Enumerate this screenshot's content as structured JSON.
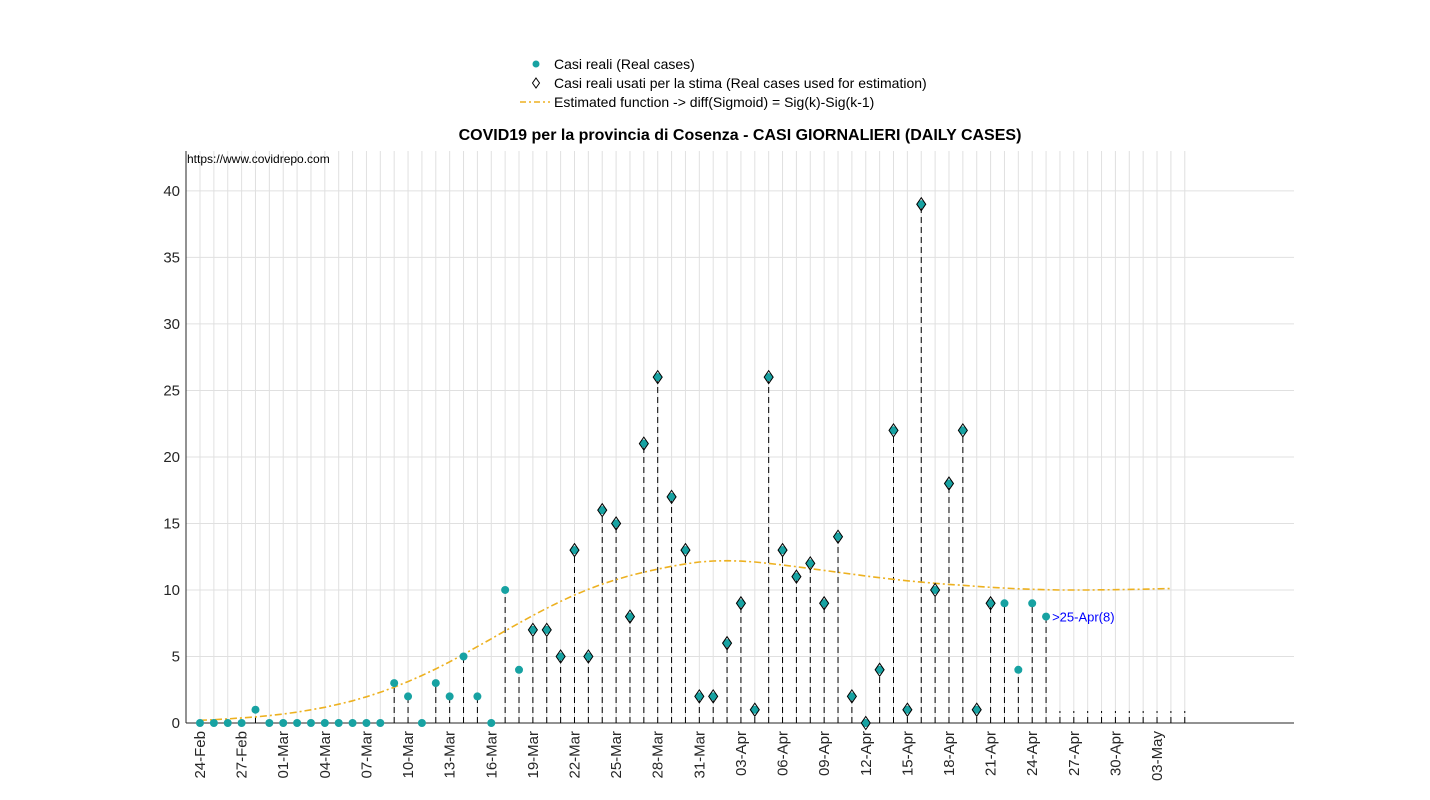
{
  "chart_data": {
    "type": "scatter",
    "title": "COVID19 per la provincia di Cosenza - CASI GIORNALIERI (DAILY CASES)",
    "source_text": "https://www.covidrepo.com",
    "xlabel": "",
    "ylabel": "",
    "ylim": [
      0,
      43
    ],
    "yticks": [
      0,
      5,
      10,
      15,
      20,
      25,
      30,
      35,
      40
    ],
    "grid": true,
    "legend_position": "top-center-outside",
    "x_dates": [
      "24-Feb",
      "25-Feb",
      "26-Feb",
      "27-Feb",
      "28-Feb",
      "29-Feb",
      "01-Mar",
      "02-Mar",
      "03-Mar",
      "04-Mar",
      "05-Mar",
      "06-Mar",
      "07-Mar",
      "08-Mar",
      "09-Mar",
      "10-Mar",
      "11-Mar",
      "12-Mar",
      "13-Mar",
      "14-Mar",
      "15-Mar",
      "16-Mar",
      "17-Mar",
      "18-Mar",
      "19-Mar",
      "20-Mar",
      "21-Mar",
      "22-Mar",
      "23-Mar",
      "24-Mar",
      "25-Mar",
      "26-Mar",
      "27-Mar",
      "28-Mar",
      "29-Mar",
      "30-Mar",
      "31-Mar",
      "01-Apr",
      "02-Apr",
      "03-Apr",
      "04-Apr",
      "05-Apr",
      "06-Apr",
      "07-Apr",
      "08-Apr",
      "09-Apr",
      "10-Apr",
      "11-Apr",
      "12-Apr",
      "13-Apr",
      "14-Apr",
      "15-Apr",
      "16-Apr",
      "17-Apr",
      "18-Apr",
      "19-Apr",
      "20-Apr",
      "21-Apr",
      "22-Apr",
      "23-Apr",
      "24-Apr",
      "25-Apr",
      "26-Apr",
      "27-Apr",
      "28-Apr",
      "29-Apr",
      "30-Apr",
      "01-May",
      "02-May",
      "03-May",
      "04-May",
      "05-May"
    ],
    "x_tick_labels": [
      "24-Feb",
      "27-Feb",
      "01-Mar",
      "04-Mar",
      "07-Mar",
      "10-Mar",
      "13-Mar",
      "16-Mar",
      "19-Mar",
      "22-Mar",
      "25-Mar",
      "28-Mar",
      "31-Mar",
      "03-Apr",
      "06-Apr",
      "09-Apr",
      "12-Apr",
      "15-Apr",
      "18-Apr",
      "21-Apr",
      "24-Apr",
      "27-Apr",
      "30-Apr",
      "03-May"
    ],
    "series": [
      {
        "name": "Casi reali (Real cases)",
        "marker": "circle",
        "color": "#17a2a2",
        "values": [
          0,
          0,
          0,
          0,
          1,
          0,
          0,
          0,
          0,
          0,
          0,
          0,
          0,
          0,
          3,
          2,
          0,
          3,
          2,
          5,
          2,
          0,
          10,
          4,
          7,
          7,
          5,
          13,
          5,
          16,
          15,
          8,
          21,
          26,
          17,
          13,
          2,
          2,
          6,
          9,
          1,
          26,
          13,
          11,
          12,
          9,
          14,
          2,
          0,
          4,
          22,
          1,
          39,
          10,
          18,
          22,
          1,
          9,
          9,
          4,
          9,
          8
        ]
      },
      {
        "name": "Casi reali usati per la stima (Real cases used for estimation)",
        "marker": "diamond",
        "color": "#000000",
        "start_index": 24,
        "values": [
          7,
          7,
          5,
          13,
          5,
          16,
          15,
          8,
          21,
          26,
          17,
          13,
          2,
          2,
          6,
          9,
          1,
          26,
          13,
          11,
          12,
          9,
          14,
          2,
          0,
          4,
          22,
          1,
          39,
          10,
          18,
          22,
          1,
          9
        ]
      },
      {
        "name": "Estimated function -> diff(Sigmoid) = Sig(k)-Sig(k-1)",
        "line_style": "dash-dot",
        "color": "#edb120",
        "values": [
          0.2,
          0.25,
          0.31,
          0.38,
          0.46,
          0.56,
          0.68,
          0.82,
          0.99,
          1.18,
          1.41,
          1.67,
          1.97,
          2.31,
          2.69,
          3.11,
          3.57,
          4.07,
          4.6,
          5.16,
          5.74,
          6.33,
          6.92,
          7.51,
          8.08,
          8.63,
          9.14,
          9.62,
          10.05,
          10.44,
          10.78,
          11.08,
          11.34,
          11.57,
          11.78,
          11.96,
          12.1,
          12.18,
          12.2,
          12.17,
          12.1,
          12.0,
          11.88,
          11.75,
          11.61,
          11.47,
          11.33,
          11.19,
          11.05,
          10.92,
          10.8,
          10.69,
          10.59,
          10.5,
          10.42,
          10.35,
          10.27,
          10.2,
          10.14,
          10.09,
          10.05,
          10.02,
          10.0,
          10.0,
          10.0,
          10.01,
          10.02,
          10.04,
          10.06,
          10.09,
          10.11
        ]
      }
    ],
    "annotations": [
      {
        "text": ">25-Apr(8)",
        "x": "25-Apr",
        "y": 8,
        "color": "#0000ff"
      }
    ]
  }
}
